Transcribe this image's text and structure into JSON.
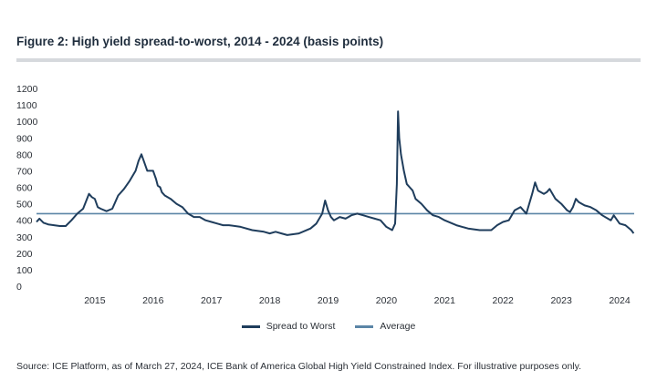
{
  "title": "Figure 2: High yield spread-to-worst, 2014 - 2024 (basis points)",
  "source": "Source: ICE Platform, as of March 27, 2024, ICE Bank of America Global High Yield Constrained Index. For illustrative purposes only.",
  "colors": {
    "spread": "#1f3d5c",
    "average": "#5b85a6",
    "rule": "#d6d9dd"
  },
  "chart_data": {
    "type": "line",
    "title": "Figure 2: High yield spread-to-worst, 2014 - 2024 (basis points)",
    "xlabel": "",
    "ylabel": "",
    "ylim": [
      0,
      1200
    ],
    "xlim": [
      2014.0,
      2024.25
    ],
    "y_ticks": [
      0,
      100,
      200,
      300,
      400,
      500,
      600,
      700,
      800,
      900,
      1000,
      1100,
      1200
    ],
    "x_ticks": [
      2015,
      2016,
      2017,
      2018,
      2019,
      2020,
      2021,
      2022,
      2023,
      2024
    ],
    "grid": false,
    "legend_position": "bottom",
    "series": [
      {
        "name": "Spread to Worst",
        "x": [
          2014.0,
          2014.05,
          2014.12,
          2014.2,
          2014.3,
          2014.4,
          2014.5,
          2014.6,
          2014.7,
          2014.8,
          2014.9,
          2014.95,
          2015.0,
          2015.05,
          2015.1,
          2015.2,
          2015.3,
          2015.4,
          2015.5,
          2015.6,
          2015.7,
          2015.75,
          2015.8,
          2015.9,
          2016.0,
          2016.05,
          2016.08,
          2016.12,
          2016.15,
          2016.2,
          2016.3,
          2016.4,
          2016.5,
          2016.6,
          2016.7,
          2016.8,
          2016.9,
          2017.0,
          2017.1,
          2017.2,
          2017.3,
          2017.5,
          2017.7,
          2017.9,
          2018.0,
          2018.1,
          2018.2,
          2018.3,
          2018.5,
          2018.7,
          2018.8,
          2018.9,
          2018.95,
          2019.0,
          2019.05,
          2019.1,
          2019.2,
          2019.3,
          2019.4,
          2019.5,
          2019.6,
          2019.7,
          2019.8,
          2019.9,
          2020.0,
          2020.1,
          2020.15,
          2020.18,
          2020.2,
          2020.22,
          2020.25,
          2020.3,
          2020.35,
          2020.4,
          2020.45,
          2020.5,
          2020.6,
          2020.7,
          2020.8,
          2020.9,
          2021.0,
          2021.2,
          2021.4,
          2021.6,
          2021.8,
          2021.9,
          2022.0,
          2022.1,
          2022.2,
          2022.3,
          2022.4,
          2022.5,
          2022.55,
          2022.6,
          2022.7,
          2022.75,
          2022.8,
          2022.9,
          2023.0,
          2023.1,
          2023.15,
          2023.2,
          2023.25,
          2023.3,
          2023.4,
          2023.5,
          2023.6,
          2023.7,
          2023.8,
          2023.85,
          2023.9,
          2024.0,
          2024.1,
          2024.2,
          2024.24
        ],
        "values": [
          390,
          410,
          385,
          375,
          370,
          365,
          365,
          400,
          440,
          470,
          560,
          540,
          530,
          480,
          470,
          455,
          470,
          550,
          590,
          640,
          700,
          760,
          800,
          700,
          700,
          650,
          610,
          600,
          570,
          550,
          530,
          500,
          480,
          440,
          420,
          420,
          400,
          390,
          380,
          370,
          370,
          360,
          340,
          330,
          320,
          330,
          320,
          310,
          320,
          350,
          380,
          440,
          520,
          460,
          420,
          400,
          420,
          410,
          430,
          440,
          430,
          420,
          410,
          400,
          360,
          340,
          380,
          620,
          1060,
          900,
          800,
          700,
          620,
          600,
          580,
          530,
          500,
          460,
          430,
          420,
          400,
          370,
          350,
          340,
          340,
          370,
          390,
          400,
          460,
          480,
          440,
          560,
          630,
          580,
          560,
          570,
          590,
          530,
          500,
          460,
          450,
          480,
          530,
          510,
          490,
          480,
          460,
          430,
          410,
          400,
          430,
          380,
          370,
          340,
          320
        ]
      },
      {
        "name": "Average",
        "x": [
          2014.0,
          2024.25
        ],
        "values": [
          440,
          440
        ]
      }
    ]
  }
}
